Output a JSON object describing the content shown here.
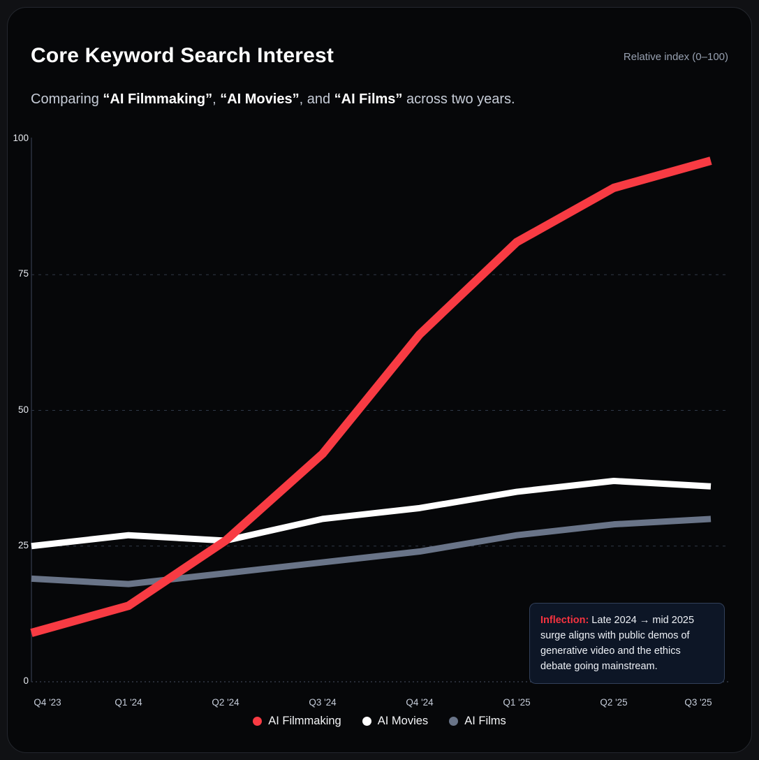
{
  "header": {
    "title": "Core Keyword Search Interest",
    "axis_note": "Relative index (0–100)"
  },
  "subtitle": {
    "parts": [
      {
        "text": "Comparing ",
        "bold": false
      },
      {
        "text": "“AI Filmmaking”",
        "bold": true
      },
      {
        "text": ", ",
        "bold": false
      },
      {
        "text": "“AI Movies”",
        "bold": true
      },
      {
        "text": ", and ",
        "bold": false
      },
      {
        "text": "“AI Films”",
        "bold": true
      },
      {
        "text": " across two years.",
        "bold": false
      }
    ]
  },
  "chart_data": {
    "type": "line",
    "categories": [
      "Q4 '23",
      "Q1 '24",
      "Q2 '24",
      "Q3 '24",
      "Q4 '24",
      "Q1 '25",
      "Q2 '25",
      "Q3 '25"
    ],
    "series": [
      {
        "name": "AI Filmmaking",
        "color": "#f83b43",
        "width": 12,
        "values": [
          9,
          14,
          26,
          42,
          64,
          81,
          91,
          96
        ]
      },
      {
        "name": "AI Movies",
        "color": "#ffffff",
        "width": 9,
        "values": [
          25,
          27,
          26,
          30,
          32,
          35,
          37,
          36
        ]
      },
      {
        "name": "AI Films",
        "color": "#697488",
        "width": 9,
        "values": [
          19,
          18,
          20,
          22,
          24,
          27,
          29,
          30
        ]
      }
    ],
    "title": "Core Keyword Search Interest",
    "xlabel": "",
    "ylabel": "Relative index (0–100)",
    "ylim": [
      0,
      100
    ],
    "yticks": [
      0,
      25,
      50,
      75,
      100
    ],
    "grid": "horizontal dashed at 25/50/75, dashed baseline at 0",
    "legend_position": "bottom"
  },
  "annotation": {
    "label": "Inflection:",
    "text": " Late 2024 → mid 2025 surge aligns with public demos of generative video and the ethics debate going mainstream."
  },
  "colors": {
    "card_bg": "#060709",
    "card_border": "#24272e",
    "grid": "#303949",
    "baseline": "#4a5265",
    "axis": "#2a3140",
    "accent_red": "#f83b43",
    "annotation_bg": "#0d1626",
    "annotation_border": "#32405a"
  }
}
